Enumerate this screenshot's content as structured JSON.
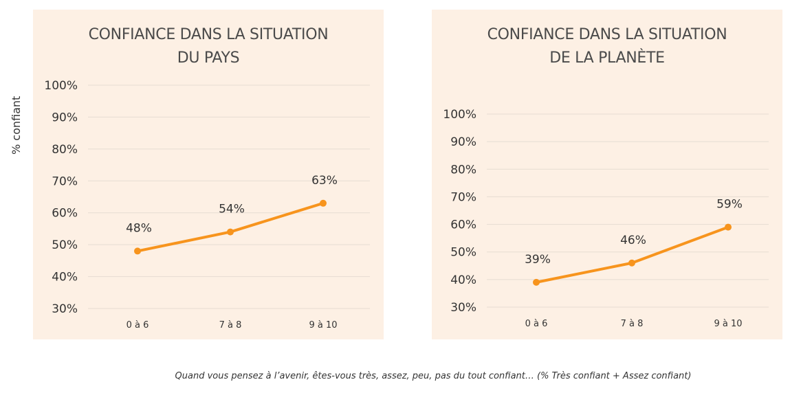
{
  "y_axis_label": "% confiant",
  "caption": "Quand vous pensez à l’avenir, êtes-vous très, assez, peu, pas du tout confiant… (% Très confiant + Assez confiant)",
  "colors": {
    "line": "#f7941d",
    "panel_bg": "#fdf0e4",
    "grid": "#e6dcd2",
    "text": "#333333"
  },
  "chart_data": [
    {
      "type": "line",
      "title_lines": [
        "CONFIANCE DANS LA SITUATION",
        "DU PAYS"
      ],
      "categories": [
        "0 à 6",
        "7 à 8",
        "9 à 10"
      ],
      "values": [
        48,
        54,
        63
      ],
      "data_labels": [
        "48%",
        "54%",
        "63%"
      ],
      "yticks": [
        "100%",
        "90%",
        "80%",
        "70%",
        "60%",
        "50%",
        "40%",
        "30%"
      ],
      "ylim": [
        30,
        100
      ],
      "grid": true,
      "ylabel": "% confiant"
    },
    {
      "type": "line",
      "title_lines": [
        "CONFIANCE DANS LA SITUATION",
        "DE LA PLANÈTE"
      ],
      "categories": [
        "0 à 6",
        "7 à 8",
        "9 à 10"
      ],
      "values": [
        39,
        46,
        59
      ],
      "data_labels": [
        "39%",
        "46%",
        "59%"
      ],
      "yticks": [
        "100%",
        "90%",
        "80%",
        "70%",
        "60%",
        "50%",
        "40%",
        "30%"
      ],
      "ylim": [
        30,
        100
      ],
      "grid": true,
      "ylabel": ""
    }
  ]
}
